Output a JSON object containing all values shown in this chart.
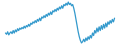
{
  "values": [
    28,
    26,
    30,
    25,
    28,
    30,
    27,
    32,
    28,
    33,
    30,
    35,
    32,
    36,
    34,
    37,
    35,
    39,
    36,
    40,
    38,
    42,
    39,
    44,
    42,
    46,
    44,
    48,
    45,
    50,
    47,
    52,
    48,
    54,
    52,
    56,
    53,
    58,
    55,
    60,
    57,
    62,
    58,
    64,
    62,
    66,
    63,
    68,
    65,
    70,
    67,
    72,
    68,
    74,
    72,
    76,
    73,
    78,
    74,
    76,
    72,
    74,
    68,
    60,
    50,
    40,
    30,
    22,
    16,
    12,
    14,
    18,
    14,
    20,
    16,
    22,
    18,
    24,
    20,
    28,
    24,
    32,
    28,
    36,
    30,
    38,
    32,
    40,
    34,
    42,
    36,
    44,
    38,
    46,
    42,
    48,
    44,
    50,
    46,
    52
  ],
  "line_color": "#3399cc",
  "bg_color": "#ffffff",
  "linewidth": 0.9
}
